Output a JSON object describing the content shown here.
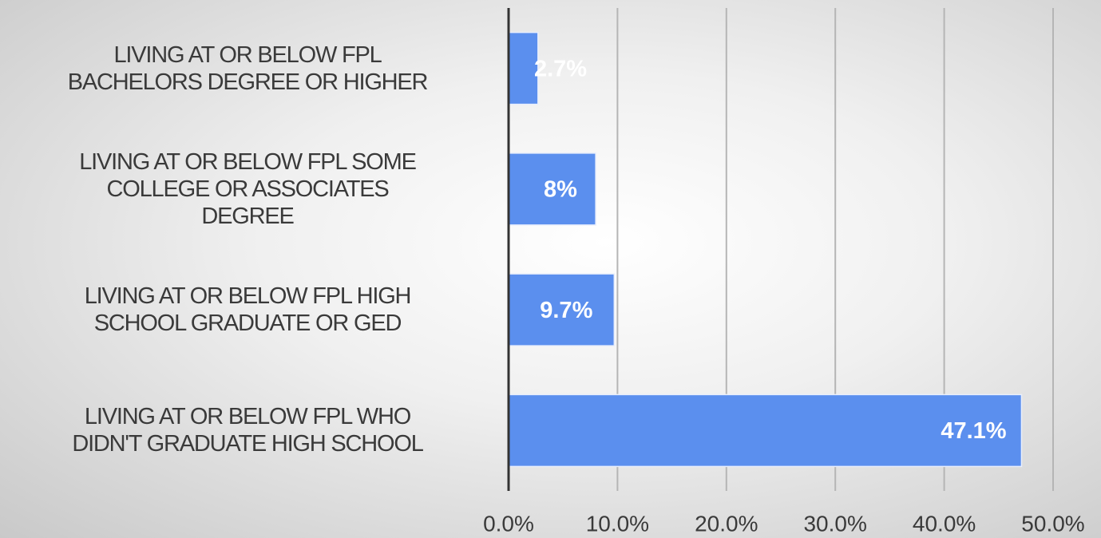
{
  "chart_data": {
    "type": "bar",
    "orientation": "horizontal",
    "categories": [
      "LIVING AT OR BELOW FPL\nBACHELORS DEGREE OR HIGHER",
      "LIVING AT OR BELOW FPL SOME\nCOLLEGE OR ASSOCIATES\nDEGREE",
      "LIVING AT OR BELOW FPL HIGH\nSCHOOL GRADUATE OR GED",
      "LIVING AT OR BELOW FPL WHO\nDIDN'T GRADUATE HIGH SCHOOL"
    ],
    "values": [
      2.7,
      8,
      9.7,
      47.1
    ],
    "value_labels": [
      "2.7%",
      "8%",
      "9.7%",
      "47.1%"
    ],
    "color": "#5b8fee",
    "xlim": [
      0,
      50
    ],
    "xticks": [
      {
        "value": 0,
        "label": "0.0%"
      },
      {
        "value": 10,
        "label": "10.0%"
      },
      {
        "value": 20,
        "label": "20.0%"
      },
      {
        "value": 30,
        "label": "30.0%"
      },
      {
        "value": 40,
        "label": "40.0%"
      },
      {
        "value": 50,
        "label": "50.0%"
      }
    ],
    "grid": true
  }
}
